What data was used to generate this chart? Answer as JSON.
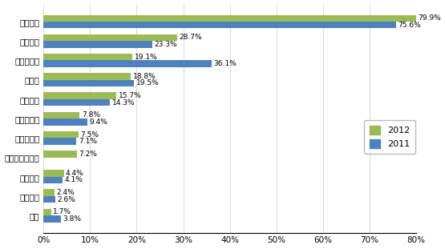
{
  "categories": [
    "产品质量",
    "供货能力",
    "产品性价比",
    "交货期",
    "技术支持",
    "技术领先性",
    "品牌知名度",
    "小批量供应服务",
    "产品组合",
    "付款条件",
    "信誉"
  ],
  "values_2012": [
    79.9,
    28.7,
    19.1,
    18.8,
    15.7,
    7.8,
    7.5,
    7.2,
    4.4,
    2.4,
    1.7
  ],
  "values_2011": [
    75.6,
    23.3,
    36.1,
    19.5,
    14.3,
    9.4,
    7.1,
    null,
    4.1,
    2.6,
    3.8
  ],
  "labels_2012": [
    "79.9%",
    "28.7%",
    "19.1%",
    "18.8%",
    "15.7%",
    "7.8%",
    "7.5%",
    "7.2%",
    "4.4%",
    "2.4%",
    "1.7%"
  ],
  "labels_2011": [
    "75.6%",
    "23.3%",
    "36.1%",
    "19.5%",
    "14.3%",
    "9.4%",
    "7.1%",
    null,
    "4.1%",
    "2.6%",
    "3.8%"
  ],
  "color_2012": "#9BBB59",
  "color_2011": "#4F81BD",
  "xlim": [
    0,
    80
  ],
  "xticks": [
    0,
    10,
    20,
    30,
    40,
    50,
    60,
    70,
    80
  ],
  "xtick_labels": [
    "0%",
    "10%",
    "20%",
    "30%",
    "40%",
    "50%",
    "60%",
    "70%",
    "80%"
  ],
  "legend_labels": [
    "2012",
    "2011"
  ],
  "bar_height": 0.35,
  "figsize": [
    5.55,
    3.11
  ],
  "dpi": 100,
  "label_fontsize": 6.5,
  "tick_fontsize": 7.5,
  "legend_fontsize": 8
}
